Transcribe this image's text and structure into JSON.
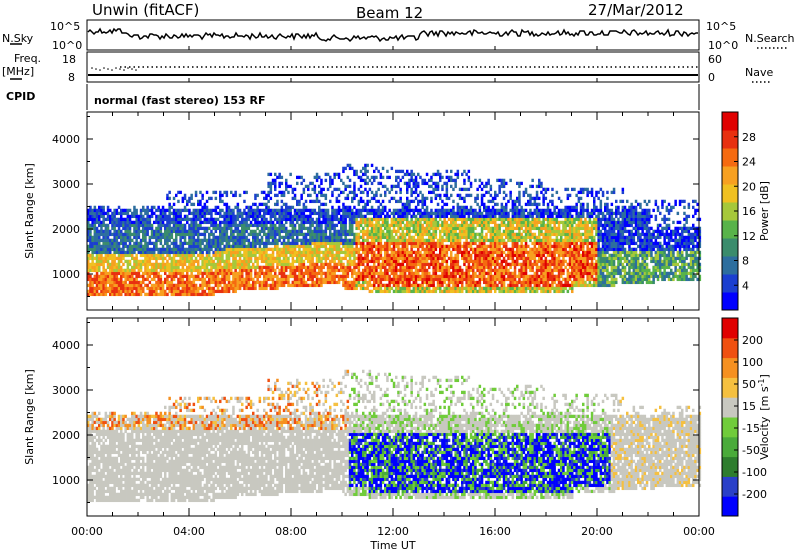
{
  "header": {
    "station": "Unwin (fitACF)",
    "beam": "Beam 12",
    "date": "27/Mar/2012"
  },
  "status_panels": {
    "nsky_label": "N.Sky",
    "nsky_ticks": [
      "10^5",
      "10^0"
    ],
    "nsearch_label": "N.Search",
    "nsearch_ticks": [
      "10^5",
      "10^0"
    ],
    "freq_label": "Freq.",
    "freq_unit": "[MHz]",
    "freq_ticks": [
      "18",
      "8"
    ],
    "nave_label": "Nave",
    "nave_ticks": [
      "60",
      "0"
    ],
    "cpid_label": "CPID",
    "cpid_text": "normal (fast stereo) 153 RF"
  },
  "chart_data": [
    {
      "type": "heatmap",
      "parameter": "Power",
      "ylabel": "Slant Range [km]",
      "xlabel": "",
      "yticks": [
        "4000",
        "3000",
        "2000",
        "1000"
      ],
      "ylim": [
        200,
        4600
      ],
      "xlim_hours": [
        0,
        24
      ],
      "colorbar_label": "Power [dB]",
      "colorbar_ticks": [
        "28",
        "24",
        "20",
        "16",
        "12",
        "8",
        "4"
      ],
      "colorbar_colors": [
        "#0000ff",
        "#1b3fd0",
        "#2d6e9e",
        "#3a8c6c",
        "#58b34a",
        "#a6c83a",
        "#f0c020",
        "#f7a020",
        "#f56a10",
        "#e83010",
        "#e00000"
      ]
    },
    {
      "type": "heatmap",
      "parameter": "Velocity",
      "ylabel": "Slant Range [km]",
      "xlabel": "Time UT",
      "yticks": [
        "4000",
        "3000",
        "2000",
        "1000"
      ],
      "ylim": [
        200,
        4600
      ],
      "xticks": [
        "00:00",
        "04:00",
        "08:00",
        "12:00",
        "16:00",
        "20:00",
        "00:00"
      ],
      "xlim_hours": [
        0,
        24
      ],
      "colorbar_label_main": "Velocity",
      "colorbar_label_unit": "[m s",
      "colorbar_label_exp": "-1",
      "colorbar_label_close": "]",
      "colorbar_ticks": [
        "200",
        "100",
        "50",
        "15",
        "-15",
        "-50",
        "-100",
        "-200"
      ],
      "colorbar_colors": [
        "#0000ff",
        "#2a40c8",
        "#2e7d2e",
        "#4aab3a",
        "#70cc3a",
        "#c8c8c0",
        "#f5c040",
        "#f59020",
        "#f05010",
        "#e00000"
      ]
    }
  ]
}
